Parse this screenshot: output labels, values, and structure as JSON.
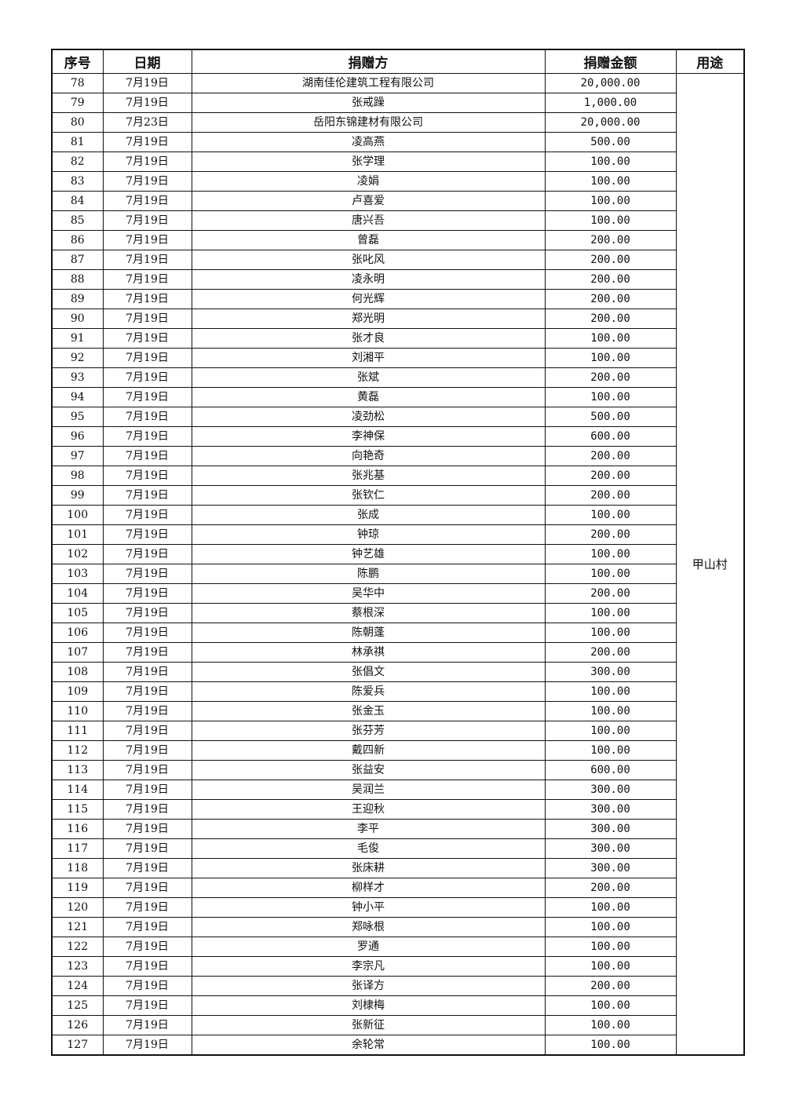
{
  "headers": {
    "no": "序号",
    "date": "日期",
    "donor": "捐赠方",
    "amount": "捐赠金额",
    "usage": "用途"
  },
  "usage": "甲山村",
  "rows": [
    {
      "no": "78",
      "date": "7月19日",
      "donor": "湖南佳伦建筑工程有限公司",
      "amount": "20,000.00"
    },
    {
      "no": "79",
      "date": "7月19日",
      "donor": "张戒躁",
      "amount": "1,000.00"
    },
    {
      "no": "80",
      "date": "7月23日",
      "donor": "岳阳东锦建材有限公司",
      "amount": "20,000.00"
    },
    {
      "no": "81",
      "date": "7月19日",
      "donor": "凌高燕",
      "amount": "500.00"
    },
    {
      "no": "82",
      "date": "7月19日",
      "donor": "张学理",
      "amount": "100.00"
    },
    {
      "no": "83",
      "date": "7月19日",
      "donor": "凌娟",
      "amount": "100.00"
    },
    {
      "no": "84",
      "date": "7月19日",
      "donor": "卢喜爱",
      "amount": "100.00"
    },
    {
      "no": "85",
      "date": "7月19日",
      "donor": "唐兴吾",
      "amount": "100.00"
    },
    {
      "no": "86",
      "date": "7月19日",
      "donor": "曾磊",
      "amount": "200.00"
    },
    {
      "no": "87",
      "date": "7月19日",
      "donor": "张叱风",
      "amount": "200.00"
    },
    {
      "no": "88",
      "date": "7月19日",
      "donor": "凌永明",
      "amount": "200.00"
    },
    {
      "no": "89",
      "date": "7月19日",
      "donor": "何光辉",
      "amount": "200.00"
    },
    {
      "no": "90",
      "date": "7月19日",
      "donor": "郑光明",
      "amount": "200.00"
    },
    {
      "no": "91",
      "date": "7月19日",
      "donor": "张才良",
      "amount": "100.00"
    },
    {
      "no": "92",
      "date": "7月19日",
      "donor": "刘湘平",
      "amount": "100.00"
    },
    {
      "no": "93",
      "date": "7月19日",
      "donor": "张斌",
      "amount": "200.00"
    },
    {
      "no": "94",
      "date": "7月19日",
      "donor": "黄磊",
      "amount": "100.00"
    },
    {
      "no": "95",
      "date": "7月19日",
      "donor": "凌劲松",
      "amount": "500.00"
    },
    {
      "no": "96",
      "date": "7月19日",
      "donor": "李神保",
      "amount": "600.00"
    },
    {
      "no": "97",
      "date": "7月19日",
      "donor": "向艳奇",
      "amount": "200.00"
    },
    {
      "no": "98",
      "date": "7月19日",
      "donor": "张兆基",
      "amount": "200.00"
    },
    {
      "no": "99",
      "date": "7月19日",
      "donor": "张钦仁",
      "amount": "200.00"
    },
    {
      "no": "100",
      "date": "7月19日",
      "donor": "张成",
      "amount": "100.00"
    },
    {
      "no": "101",
      "date": "7月19日",
      "donor": "钟琼",
      "amount": "200.00"
    },
    {
      "no": "102",
      "date": "7月19日",
      "donor": "钟艺雄",
      "amount": "100.00"
    },
    {
      "no": "103",
      "date": "7月19日",
      "donor": "陈鹏",
      "amount": "100.00"
    },
    {
      "no": "104",
      "date": "7月19日",
      "donor": "吴华中",
      "amount": "200.00"
    },
    {
      "no": "105",
      "date": "7月19日",
      "donor": "蔡根深",
      "amount": "100.00"
    },
    {
      "no": "106",
      "date": "7月19日",
      "donor": "陈朝蓬",
      "amount": "100.00"
    },
    {
      "no": "107",
      "date": "7月19日",
      "donor": "林承祺",
      "amount": "200.00"
    },
    {
      "no": "108",
      "date": "7月19日",
      "donor": "张倡文",
      "amount": "300.00"
    },
    {
      "no": "109",
      "date": "7月19日",
      "donor": "陈爱兵",
      "amount": "100.00"
    },
    {
      "no": "110",
      "date": "7月19日",
      "donor": "张金玉",
      "amount": "100.00"
    },
    {
      "no": "111",
      "date": "7月19日",
      "donor": "张芬芳",
      "amount": "100.00"
    },
    {
      "no": "112",
      "date": "7月19日",
      "donor": "戴四新",
      "amount": "100.00"
    },
    {
      "no": "113",
      "date": "7月19日",
      "donor": "张益安",
      "amount": "600.00"
    },
    {
      "no": "114",
      "date": "7月19日",
      "donor": "吴润兰",
      "amount": "300.00"
    },
    {
      "no": "115",
      "date": "7月19日",
      "donor": "王迎秋",
      "amount": "300.00"
    },
    {
      "no": "116",
      "date": "7月19日",
      "donor": "李平",
      "amount": "300.00"
    },
    {
      "no": "117",
      "date": "7月19日",
      "donor": "毛俊",
      "amount": "300.00"
    },
    {
      "no": "118",
      "date": "7月19日",
      "donor": "张床耕",
      "amount": "300.00"
    },
    {
      "no": "119",
      "date": "7月19日",
      "donor": "柳样才",
      "amount": "200.00"
    },
    {
      "no": "120",
      "date": "7月19日",
      "donor": "钟小平",
      "amount": "100.00"
    },
    {
      "no": "121",
      "date": "7月19日",
      "donor": "郑咏根",
      "amount": "100.00"
    },
    {
      "no": "122",
      "date": "7月19日",
      "donor": "罗通",
      "amount": "100.00"
    },
    {
      "no": "123",
      "date": "7月19日",
      "donor": "李宗凡",
      "amount": "100.00"
    },
    {
      "no": "124",
      "date": "7月19日",
      "donor": "张译方",
      "amount": "200.00"
    },
    {
      "no": "125",
      "date": "7月19日",
      "donor": "刘棣梅",
      "amount": "100.00"
    },
    {
      "no": "126",
      "date": "7月19日",
      "donor": "张新征",
      "amount": "100.00"
    },
    {
      "no": "127",
      "date": "7月19日",
      "donor": "余轮常",
      "amount": "100.00"
    }
  ]
}
